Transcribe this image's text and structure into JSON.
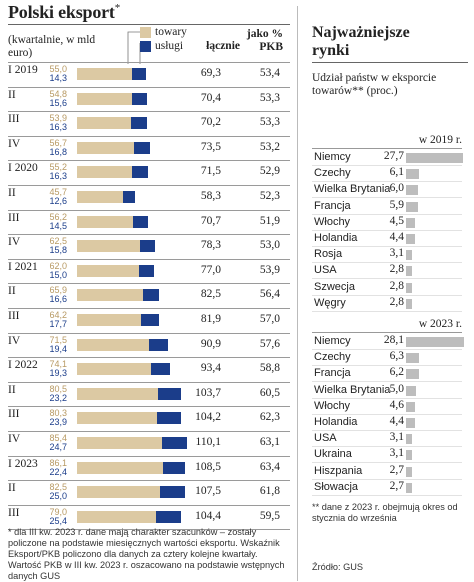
{
  "left": {
    "title": "Polski eksport",
    "title_mark": "*",
    "unit": "(kwartalnie, w mld euro)",
    "legend": {
      "goods": "towary",
      "services": "usługi"
    },
    "col_total": "łącznie",
    "col_gdp": "jako % PKB",
    "footnote": "* dla III kw. 2023 r. dane mają charakter szacunków – zostały policzone na podstawie miesięcznych wartości eksportu. Wskaźnik Eksport/PKB policzono dla danych za cztery kolejne kwartały. Wartość PKB w III kw. 2023 r. oszacowano na podstawie wstępnych danych GUS"
  },
  "right": {
    "title": "Najważniejsze rynki",
    "subtitle": "Udział państw w eksporcie towarów** (proc.)",
    "note": "** dane z 2023 r. obejmują okres od stycznia do września",
    "source": "Źródło: GUS"
  },
  "colors": {
    "goods": "#dcc9a3",
    "services": "#1b3d8a",
    "market_bar": "#bdbdbd",
    "rule": "#9a9a9a"
  },
  "chart_data": [
    {
      "type": "bar",
      "stacked": true,
      "orientation": "horizontal",
      "categories": [
        "I 2019",
        "II",
        "III",
        "IV",
        "I 2020",
        "II",
        "III",
        "IV",
        "I 2021",
        "II",
        "III",
        "IV",
        "I 2022",
        "II",
        "III",
        "IV",
        "I 2023",
        "II",
        "III"
      ],
      "series": [
        {
          "name": "towary",
          "values": [
            55.0,
            54.8,
            53.9,
            56.7,
            55.2,
            45.7,
            56.2,
            62.5,
            62.0,
            65.9,
            64.2,
            71.5,
            74.1,
            80.5,
            80.3,
            85.4,
            86.1,
            82.5,
            79.0
          ]
        },
        {
          "name": "usługi",
          "values": [
            14.3,
            15.6,
            16.3,
            16.8,
            16.3,
            12.6,
            14.5,
            15.8,
            15.0,
            16.6,
            17.7,
            19.4,
            19.3,
            23.2,
            23.9,
            24.7,
            22.4,
            25.0,
            25.4
          ]
        }
      ],
      "totals": [
        "69,3",
        "70,4",
        "70,2",
        "73,5",
        "71,5",
        "58,3",
        "70,7",
        "78,3",
        "77,0",
        "82,5",
        "81,9",
        "90,9",
        "93,4",
        "103,7",
        "104,2",
        "110,1",
        "108,5",
        "107,5",
        "104,4"
      ],
      "gdp_share": [
        "53,4",
        "53,3",
        "53,3",
        "53,2",
        "52,9",
        "52,3",
        "51,9",
        "53,0",
        "53,9",
        "56,4",
        "57,0",
        "57,6",
        "58,8",
        "60,5",
        "62,3",
        "63,1",
        "63,4",
        "61,8",
        "59,5"
      ],
      "xlim": [
        0,
        110
      ]
    },
    {
      "type": "bar",
      "orientation": "horizontal",
      "title": "w 2019 r.",
      "categories": [
        "Niemcy",
        "Czechy",
        "Wielka Brytania",
        "Francja",
        "Włochy",
        "Holandia",
        "Rosja",
        "USA",
        "Szwecja",
        "Węgry"
      ],
      "values": [
        27.7,
        6.1,
        6.0,
        5.9,
        4.5,
        4.4,
        3.1,
        2.8,
        2.8,
        2.8
      ]
    },
    {
      "type": "bar",
      "orientation": "horizontal",
      "title": "w 2023 r.",
      "categories": [
        "Niemcy",
        "Czechy",
        "Francja",
        "Wielka Brytania",
        "Włochy",
        "Holandia",
        "USA",
        "Ukraina",
        "Hiszpania",
        "Słowacja"
      ],
      "values": [
        28.1,
        6.3,
        6.2,
        5.0,
        4.6,
        4.4,
        3.1,
        3.1,
        2.7,
        2.7
      ]
    }
  ]
}
